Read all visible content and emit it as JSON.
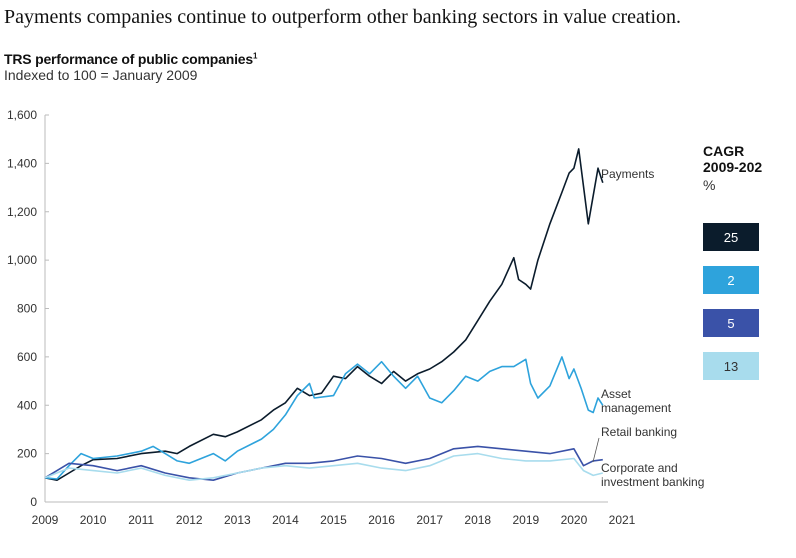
{
  "title": "Payments companies continue to outperform other banking sectors in value creation.",
  "chart_data": {
    "type": "line",
    "title": "TRS performance of public companies",
    "title_footnote": "1",
    "subtitle": "Indexed to 100 = January 2009",
    "xlim": [
      2009,
      2021
    ],
    "ylim": [
      0,
      1600
    ],
    "xticks": [
      2009,
      2010,
      2011,
      2012,
      2013,
      2014,
      2015,
      2016,
      2017,
      2018,
      2019,
      2020,
      2021
    ],
    "yticks": [
      0,
      200,
      400,
      600,
      800,
      1000,
      1200,
      1400,
      1600
    ],
    "ytick_labels": [
      "0",
      "200",
      "400",
      "600",
      "800",
      "1,000",
      "1,200",
      "1,400",
      "1,600"
    ],
    "grid": false,
    "series": [
      {
        "name": "Payments",
        "color": "#0b1c2c",
        "cagr": "25",
        "x": [
          2009,
          2009.25,
          2009.5,
          2009.75,
          2010,
          2010.5,
          2011,
          2011.5,
          2011.75,
          2012,
          2012.5,
          2012.75,
          2013,
          2013.5,
          2013.75,
          2014,
          2014.25,
          2014.5,
          2014.75,
          2015,
          2015.25,
          2015.5,
          2015.75,
          2016,
          2016.25,
          2016.5,
          2016.75,
          2017,
          2017.25,
          2017.5,
          2017.75,
          2018,
          2018.25,
          2018.5,
          2018.75,
          2018.85,
          2019,
          2019.1,
          2019.25,
          2019.5,
          2019.75,
          2019.9,
          2020,
          2020.1,
          2020.3,
          2020.5,
          2020.6
        ],
        "y": [
          100,
          90,
          120,
          150,
          175,
          180,
          200,
          210,
          200,
          230,
          280,
          270,
          290,
          340,
          380,
          410,
          470,
          440,
          450,
          520,
          510,
          560,
          520,
          490,
          540,
          500,
          530,
          550,
          580,
          620,
          670,
          750,
          830,
          900,
          1010,
          920,
          900,
          880,
          1000,
          1150,
          1280,
          1360,
          1380,
          1460,
          1150,
          1380,
          1320
        ]
      },
      {
        "name": "Asset management",
        "color": "#2ea3dc",
        "cagr": "2",
        "x": [
          2009,
          2009.25,
          2009.5,
          2009.75,
          2010,
          2010.5,
          2011,
          2011.25,
          2011.5,
          2011.75,
          2012,
          2012.5,
          2012.75,
          2013,
          2013.5,
          2013.75,
          2014,
          2014.25,
          2014.5,
          2014.6,
          2015,
          2015.25,
          2015.5,
          2015.75,
          2016,
          2016.25,
          2016.5,
          2016.75,
          2017,
          2017.25,
          2017.5,
          2017.75,
          2018,
          2018.25,
          2018.5,
          2018.75,
          2019,
          2019.1,
          2019.25,
          2019.5,
          2019.75,
          2019.9,
          2020,
          2020.15,
          2020.3,
          2020.4,
          2020.5,
          2020.6
        ],
        "y": [
          100,
          95,
          150,
          200,
          180,
          190,
          210,
          230,
          200,
          170,
          160,
          200,
          170,
          210,
          260,
          300,
          360,
          440,
          490,
          430,
          440,
          530,
          570,
          530,
          580,
          520,
          470,
          520,
          430,
          410,
          460,
          520,
          500,
          540,
          560,
          560,
          590,
          490,
          430,
          480,
          600,
          510,
          550,
          470,
          380,
          370,
          430,
          400
        ]
      },
      {
        "name": "Retail banking",
        "color": "#3a52a8",
        "cagr": "5",
        "x": [
          2009,
          2009.25,
          2009.5,
          2010,
          2010.5,
          2011,
          2011.5,
          2012,
          2012.5,
          2013,
          2013.5,
          2014,
          2014.5,
          2015,
          2015.5,
          2016,
          2016.5,
          2017,
          2017.5,
          2018,
          2018.5,
          2019,
          2019.5,
          2020,
          2020.2,
          2020.4,
          2020.6
        ],
        "y": [
          100,
          130,
          160,
          150,
          130,
          150,
          120,
          100,
          90,
          120,
          140,
          160,
          160,
          170,
          190,
          180,
          160,
          180,
          220,
          230,
          220,
          210,
          200,
          220,
          150,
          170,
          175
        ]
      },
      {
        "name": "Corporate and investment banking",
        "color": "#a8dced",
        "cagr": "13",
        "x": [
          2009,
          2009.5,
          2010,
          2010.5,
          2011,
          2011.5,
          2012,
          2012.5,
          2013,
          2013.5,
          2014,
          2014.5,
          2015,
          2015.5,
          2016,
          2016.5,
          2017,
          2017.5,
          2018,
          2018.5,
          2019,
          2019.5,
          2020,
          2020.2,
          2020.4,
          2020.6
        ],
        "y": [
          100,
          140,
          130,
          120,
          140,
          110,
          90,
          100,
          120,
          140,
          150,
          140,
          150,
          160,
          140,
          130,
          150,
          190,
          200,
          180,
          170,
          170,
          180,
          130,
          110,
          120
        ]
      }
    ],
    "series_labels": [
      [
        "Payments"
      ],
      [
        "Asset",
        "management"
      ],
      [
        "Retail banking"
      ],
      [
        "Corporate and",
        "investment banking"
      ]
    ],
    "cagr_header": [
      "CAGR",
      "2009-202"
    ],
    "cagr_unit": "%"
  }
}
